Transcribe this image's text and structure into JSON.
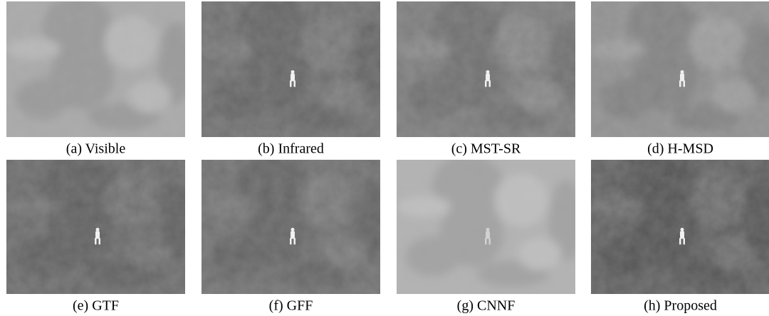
{
  "panels": [
    {
      "caption": "(a) Visible"
    },
    {
      "caption": "(b) Infrared"
    },
    {
      "caption": "(c) MST-SR"
    },
    {
      "caption": "(d) H-MSD"
    },
    {
      "caption": "(e) GTF"
    },
    {
      "caption": "(f) GFF"
    },
    {
      "caption": "(g) CNNF"
    },
    {
      "caption": "(h) Proposed"
    }
  ]
}
